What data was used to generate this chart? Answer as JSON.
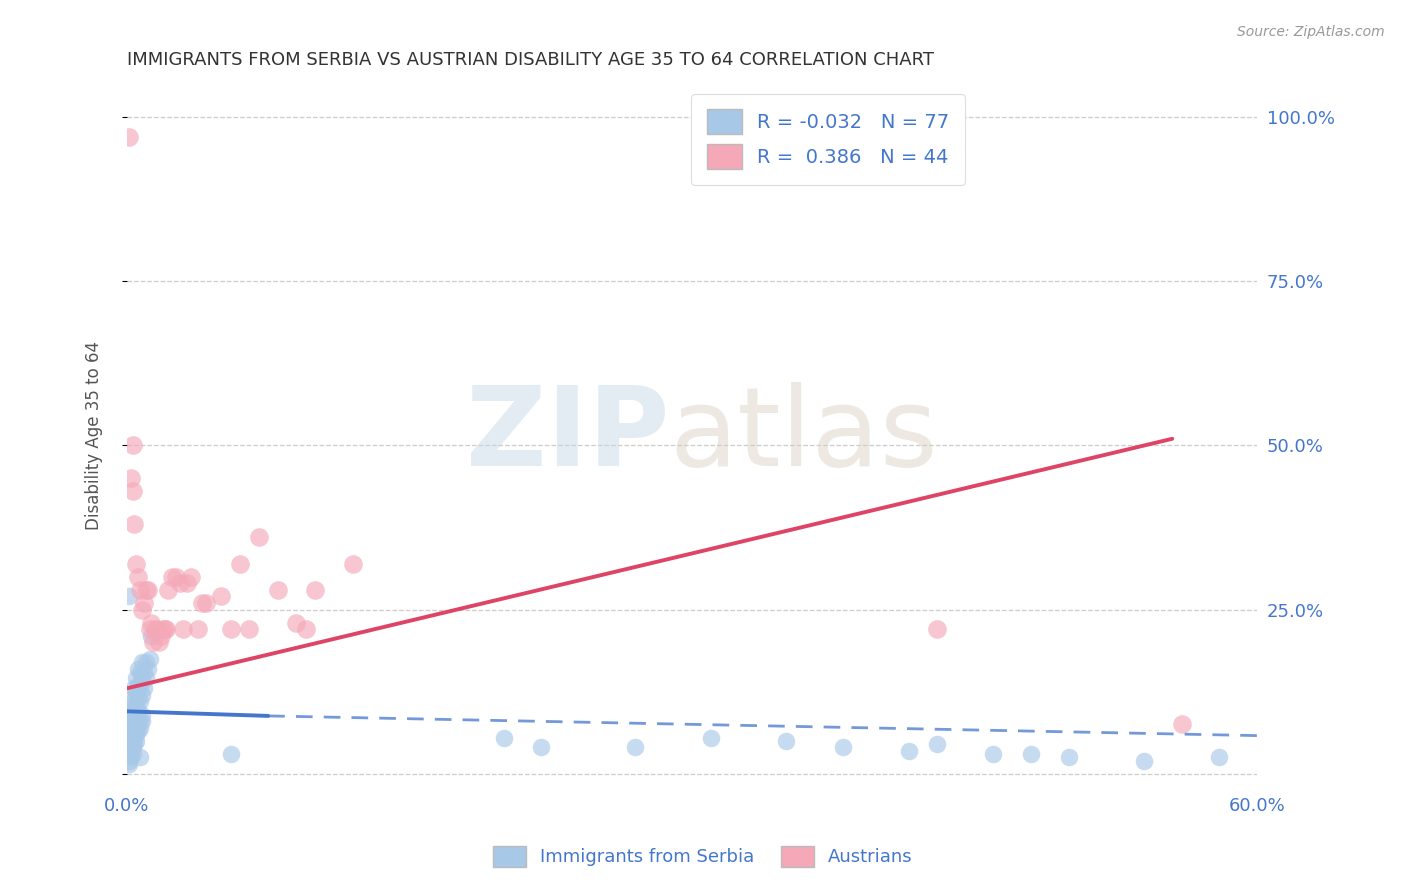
{
  "title": "IMMIGRANTS FROM SERBIA VS AUSTRIAN DISABILITY AGE 35 TO 64 CORRELATION CHART",
  "source": "Source: ZipAtlas.com",
  "ylabel": "Disability Age 35 to 64",
  "xlim": [
    0.0,
    0.6
  ],
  "ylim": [
    -0.02,
    1.05
  ],
  "xticks": [
    0.0,
    0.1,
    0.2,
    0.3,
    0.4,
    0.5,
    0.6
  ],
  "xticklabels": [
    "0.0%",
    "",
    "",
    "",
    "",
    "",
    "60.0%"
  ],
  "ytick_positions": [
    0.0,
    0.25,
    0.5,
    0.75,
    1.0
  ],
  "ytick_labels_right": [
    "",
    "25.0%",
    "50.0%",
    "75.0%",
    "100.0%"
  ],
  "watermark_zip": "ZIP",
  "watermark_atlas": "atlas",
  "legend_r_blue": "-0.032",
  "legend_n_blue": "77",
  "legend_r_pink": "0.386",
  "legend_n_pink": "44",
  "blue_color": "#a8c8e8",
  "pink_color": "#f4a8b8",
  "blue_line_color": "#4477cc",
  "pink_line_color": "#dd4466",
  "blue_scatter": [
    [
      0.001,
      0.085
    ],
    [
      0.001,
      0.07
    ],
    [
      0.001,
      0.06
    ],
    [
      0.002,
      0.1
    ],
    [
      0.002,
      0.085
    ],
    [
      0.002,
      0.075
    ],
    [
      0.002,
      0.065
    ],
    [
      0.003,
      0.115
    ],
    [
      0.003,
      0.095
    ],
    [
      0.003,
      0.08
    ],
    [
      0.003,
      0.065
    ],
    [
      0.004,
      0.13
    ],
    [
      0.004,
      0.11
    ],
    [
      0.004,
      0.095
    ],
    [
      0.004,
      0.08
    ],
    [
      0.005,
      0.145
    ],
    [
      0.005,
      0.125
    ],
    [
      0.005,
      0.105
    ],
    [
      0.005,
      0.09
    ],
    [
      0.006,
      0.16
    ],
    [
      0.006,
      0.135
    ],
    [
      0.006,
      0.115
    ],
    [
      0.006,
      0.095
    ],
    [
      0.007,
      0.155
    ],
    [
      0.007,
      0.13
    ],
    [
      0.007,
      0.11
    ],
    [
      0.008,
      0.17
    ],
    [
      0.008,
      0.145
    ],
    [
      0.008,
      0.12
    ],
    [
      0.009,
      0.155
    ],
    [
      0.009,
      0.13
    ],
    [
      0.01,
      0.17
    ],
    [
      0.01,
      0.145
    ],
    [
      0.011,
      0.16
    ],
    [
      0.012,
      0.175
    ],
    [
      0.001,
      0.05
    ],
    [
      0.001,
      0.04
    ],
    [
      0.001,
      0.03
    ],
    [
      0.001,
      0.02
    ],
    [
      0.001,
      0.015
    ],
    [
      0.002,
      0.055
    ],
    [
      0.002,
      0.045
    ],
    [
      0.002,
      0.035
    ],
    [
      0.002,
      0.025
    ],
    [
      0.003,
      0.06
    ],
    [
      0.003,
      0.05
    ],
    [
      0.003,
      0.04
    ],
    [
      0.003,
      0.03
    ],
    [
      0.004,
      0.065
    ],
    [
      0.004,
      0.055
    ],
    [
      0.004,
      0.045
    ],
    [
      0.005,
      0.07
    ],
    [
      0.005,
      0.06
    ],
    [
      0.005,
      0.05
    ],
    [
      0.006,
      0.075
    ],
    [
      0.006,
      0.065
    ],
    [
      0.007,
      0.08
    ],
    [
      0.007,
      0.07
    ],
    [
      0.008,
      0.09
    ],
    [
      0.008,
      0.08
    ],
    [
      0.001,
      0.27
    ],
    [
      0.013,
      0.21
    ],
    [
      0.055,
      0.03
    ],
    [
      0.2,
      0.055
    ],
    [
      0.27,
      0.04
    ],
    [
      0.31,
      0.055
    ],
    [
      0.38,
      0.04
    ],
    [
      0.415,
      0.035
    ],
    [
      0.46,
      0.03
    ],
    [
      0.5,
      0.025
    ],
    [
      0.54,
      0.02
    ],
    [
      0.58,
      0.025
    ],
    [
      0.22,
      0.04
    ],
    [
      0.35,
      0.05
    ],
    [
      0.43,
      0.045
    ],
    [
      0.48,
      0.03
    ],
    [
      0.007,
      0.025
    ]
  ],
  "pink_scatter": [
    [
      0.001,
      0.97
    ],
    [
      0.002,
      0.45
    ],
    [
      0.003,
      0.43
    ],
    [
      0.004,
      0.38
    ],
    [
      0.005,
      0.32
    ],
    [
      0.006,
      0.3
    ],
    [
      0.007,
      0.28
    ],
    [
      0.008,
      0.25
    ],
    [
      0.009,
      0.26
    ],
    [
      0.01,
      0.28
    ],
    [
      0.011,
      0.28
    ],
    [
      0.012,
      0.22
    ],
    [
      0.013,
      0.23
    ],
    [
      0.014,
      0.2
    ],
    [
      0.015,
      0.22
    ],
    [
      0.016,
      0.22
    ],
    [
      0.017,
      0.2
    ],
    [
      0.018,
      0.21
    ],
    [
      0.019,
      0.22
    ],
    [
      0.02,
      0.22
    ],
    [
      0.021,
      0.22
    ],
    [
      0.022,
      0.28
    ],
    [
      0.024,
      0.3
    ],
    [
      0.026,
      0.3
    ],
    [
      0.028,
      0.29
    ],
    [
      0.03,
      0.22
    ],
    [
      0.032,
      0.29
    ],
    [
      0.034,
      0.3
    ],
    [
      0.038,
      0.22
    ],
    [
      0.04,
      0.26
    ],
    [
      0.042,
      0.26
    ],
    [
      0.05,
      0.27
    ],
    [
      0.055,
      0.22
    ],
    [
      0.06,
      0.32
    ],
    [
      0.065,
      0.22
    ],
    [
      0.07,
      0.36
    ],
    [
      0.08,
      0.28
    ],
    [
      0.09,
      0.23
    ],
    [
      0.095,
      0.22
    ],
    [
      0.1,
      0.28
    ],
    [
      0.12,
      0.32
    ],
    [
      0.003,
      0.5
    ],
    [
      0.43,
      0.22
    ],
    [
      0.56,
      0.075
    ]
  ],
  "blue_trend_solid": {
    "x_start": 0.0,
    "y_start": 0.095,
    "x_end": 0.075,
    "y_end": 0.088
  },
  "blue_trend_dash": {
    "x_start": 0.075,
    "y_start": 0.088,
    "x_end": 0.6,
    "y_end": 0.058
  },
  "pink_trend": {
    "x_start": 0.0,
    "y_start": 0.13,
    "x_end": 0.555,
    "y_end": 0.51
  },
  "grid_color": "#cccccc",
  "title_color": "#333333",
  "axis_color": "#555555",
  "right_label_color": "#4477cc",
  "legend_label_blue": "Immigrants from Serbia",
  "legend_label_pink": "Austrians"
}
